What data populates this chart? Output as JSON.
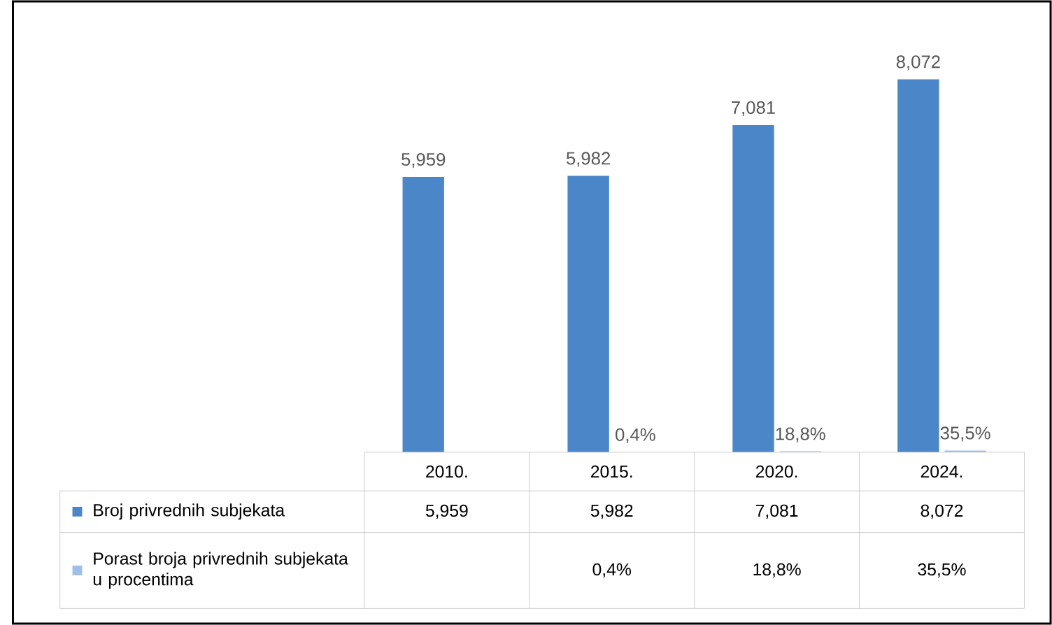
{
  "chart_data": {
    "type": "bar",
    "categories": [
      "2010.",
      "2015.",
      "2020.",
      "2024."
    ],
    "legend": "bottom",
    "series": [
      {
        "name": "Broj privrednih subjekata",
        "color": "#4a86c8",
        "values": [
          5959,
          5982,
          7081,
          8072
        ],
        "value_labels": [
          "5,959",
          "5,982",
          "7,081",
          "8,072"
        ]
      },
      {
        "name": "Porast broja privrednih subjekata u procentima",
        "color": "#9dbfe8",
        "values": [
          null,
          0.4,
          18.8,
          35.5
        ],
        "value_labels": [
          null,
          "0,4%",
          "18,8%",
          "35,5%"
        ]
      }
    ]
  }
}
